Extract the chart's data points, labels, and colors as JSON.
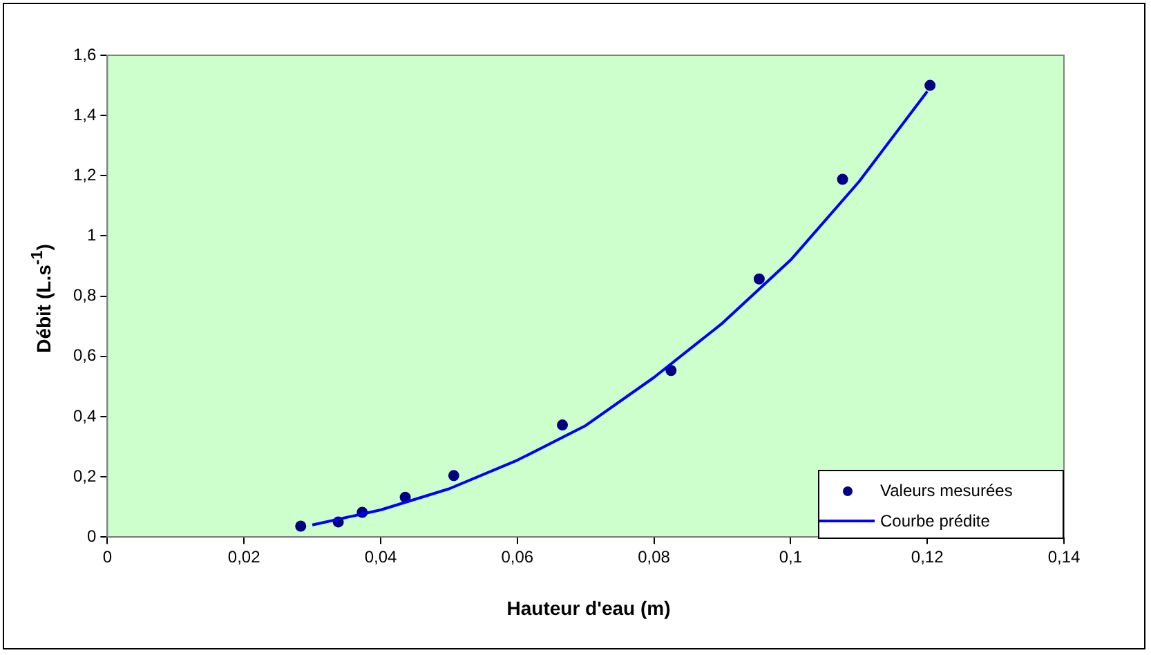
{
  "chart_data": {
    "type": "scatter",
    "xlabel": "Hauteur d'eau (m)",
    "ylabel": "Débit (L.s$^{-1}$)",
    "xlim": [
      0,
      0.14
    ],
    "xticks": [
      {
        "value": 0,
        "label": "0"
      },
      {
        "value": 0.02,
        "label": "0,02"
      },
      {
        "value": 0.04,
        "label": "0,04"
      },
      {
        "value": 0.06,
        "label": "0,06"
      },
      {
        "value": 0.08,
        "label": "0,08"
      },
      {
        "value": 0.1,
        "label": "0,1"
      },
      {
        "value": 0.12,
        "label": "0,12"
      },
      {
        "value": 0.14,
        "label": "0,14"
      }
    ],
    "ylim": [
      0,
      1.6
    ],
    "yticks": [
      {
        "value": 0,
        "label": "0"
      },
      {
        "value": 0.2,
        "label": "0,2"
      },
      {
        "value": 0.4,
        "label": "0,4"
      },
      {
        "value": 0.6,
        "label": "0,6"
      },
      {
        "value": 0.8,
        "label": "0,8"
      },
      {
        "value": 1,
        "label": "1"
      },
      {
        "value": 1.2,
        "label": "1,2"
      },
      {
        "value": 1.4,
        "label": "1,4"
      },
      {
        "value": 1.6,
        "label": "1,6"
      }
    ],
    "grid": false,
    "legend": "bottom right",
    "series": [
      {
        "name": "Valeurs mesurées",
        "type": "scatter",
        "marker": "circle",
        "color": "#000080",
        "x": [
          0.0283,
          0.0338,
          0.0373,
          0.0436,
          0.0507,
          0.0666,
          0.0825,
          0.0954,
          0.1076,
          0.1204
        ],
        "values": [
          0.036,
          0.05,
          0.082,
          0.132,
          0.204,
          0.372,
          0.553,
          0.857,
          1.188,
          1.5
        ]
      },
      {
        "name": "Courbe prédite",
        "type": "line",
        "marker": "none",
        "line_style": "solid",
        "color": "#0000ff",
        "x": [
          0.03,
          0.04,
          0.05,
          0.06,
          0.07,
          0.08,
          0.09,
          0.1,
          0.11,
          0.12
        ],
        "values": [
          0.04,
          0.09,
          0.16,
          0.255,
          0.37,
          0.53,
          0.71,
          0.92,
          1.18,
          1.48
        ]
      }
    ]
  }
}
